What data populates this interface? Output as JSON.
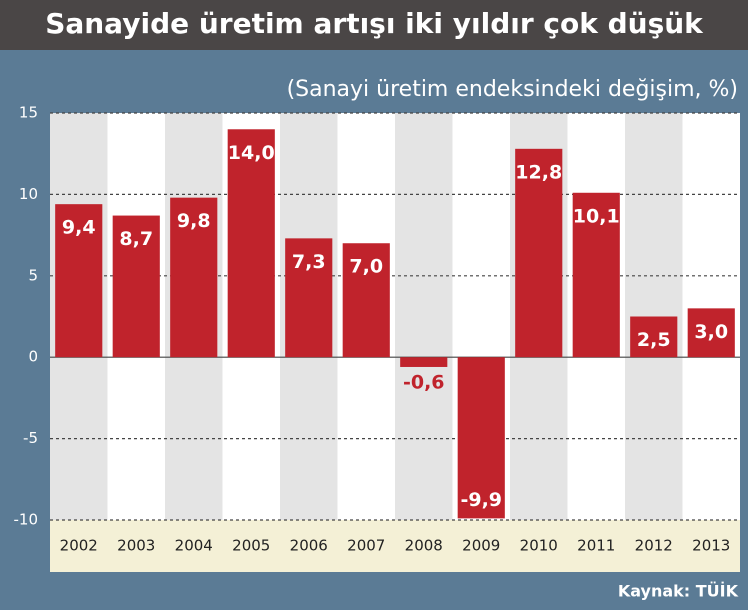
{
  "chart_data": {
    "type": "bar",
    "title": "Sanayide üretim artışı iki yıldır çok düşük",
    "subtitle": "(Sanayi üretim endeksindeki değişim, %)",
    "source": "Kaynak: TÜİK",
    "categories": [
      "2002",
      "2003",
      "2004",
      "2005",
      "2006",
      "2007",
      "2008",
      "2009",
      "2010",
      "2011",
      "2012",
      "2013"
    ],
    "values": [
      9.4,
      8.7,
      9.8,
      14.0,
      7.3,
      7.0,
      -0.6,
      -9.9,
      12.8,
      10.1,
      2.5,
      3.0
    ],
    "value_labels": [
      "9,4",
      "8,7",
      "9,8",
      "14,0",
      "7,3",
      "7,0",
      "-0,6",
      "-9,9",
      "12,8",
      "10,1",
      "2,5",
      "3,0"
    ],
    "color": "#c0232c",
    "ylim": [
      -10,
      15
    ],
    "yticks": [
      15,
      10,
      5,
      0,
      -5,
      -10
    ],
    "grid": true
  }
}
